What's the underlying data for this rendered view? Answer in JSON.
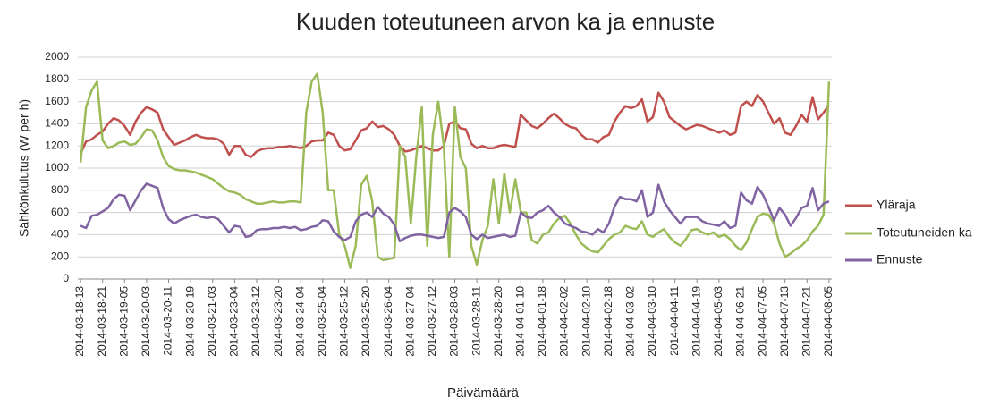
{
  "chart_data": {
    "type": "line",
    "title": "Kuuden toteutuneen arvon ka ja ennuste",
    "x_label": "Päivämäärä",
    "y_label": "Sähkönkulutus  (W per h)",
    "categories": [
      "2014-03-18-13",
      null,
      null,
      null,
      "2014-03-18-21",
      null,
      null,
      null,
      "2014-03-19-05",
      null,
      null,
      null,
      "2014-03-20-03",
      null,
      null,
      null,
      "2014-03-20-11",
      null,
      null,
      null,
      "2014-03-20-19",
      null,
      null,
      null,
      "2014-03-21-03",
      null,
      null,
      null,
      "2014-03-23-04",
      null,
      null,
      null,
      "2014-03-23-12",
      null,
      null,
      null,
      "2014-03-23-20",
      null,
      null,
      null,
      "2014-03-24-04",
      null,
      null,
      null,
      "2014-03-25-04",
      null,
      null,
      null,
      "2014-03-25-12",
      null,
      null,
      null,
      "2014-03-25-20",
      null,
      null,
      null,
      "2014-03-26-04",
      null,
      null,
      null,
      "2014-03-27-04",
      null,
      null,
      null,
      "2014-03-27-12",
      null,
      null,
      null,
      "2014-03-28-03",
      null,
      null,
      null,
      "2014-03-28-11",
      null,
      null,
      null,
      "2014-03-28-20",
      null,
      null,
      null,
      "2014-04-01-10",
      null,
      null,
      null,
      "2014-04-01-18",
      null,
      null,
      null,
      "2014-04-02-02",
      null,
      null,
      null,
      "2014-04-02-10",
      null,
      null,
      null,
      "2014-04-02-18",
      null,
      null,
      null,
      "2014-04-03-02",
      null,
      null,
      null,
      "2014-04-03-10",
      null,
      null,
      null,
      "2014-04-04-11",
      null,
      null,
      null,
      "2014-04-04-19",
      null,
      null,
      null,
      "2014-04-05-03",
      null,
      null,
      null,
      "2014-04-06-21",
      null,
      null,
      null,
      "2014-04-07-05",
      null,
      null,
      null,
      "2014-04-07-13",
      null,
      null,
      null,
      "2014-04-07-21",
      null,
      null,
      null,
      "2014-04-08-05"
    ],
    "series": [
      {
        "name": "Yläraja",
        "color": "#c0504d",
        "values": [
          1130,
          1240,
          1260,
          1300,
          1330,
          1400,
          1450,
          1430,
          1380,
          1300,
          1420,
          1500,
          1550,
          1530,
          1500,
          1350,
          1280,
          1210,
          1230,
          1250,
          1280,
          1300,
          1280,
          1270,
          1270,
          1260,
          1220,
          1120,
          1200,
          1200,
          1120,
          1100,
          1150,
          1170,
          1180,
          1180,
          1190,
          1190,
          1200,
          1190,
          1180,
          1200,
          1240,
          1250,
          1250,
          1320,
          1300,
          1200,
          1160,
          1170,
          1250,
          1340,
          1360,
          1420,
          1370,
          1380,
          1350,
          1300,
          1200,
          1150,
          1160,
          1180,
          1200,
          1180,
          1160,
          1160,
          1200,
          1400,
          1420,
          1360,
          1350,
          1220,
          1180,
          1200,
          1180,
          1180,
          1200,
          1210,
          1200,
          1190,
          1480,
          1430,
          1380,
          1360,
          1400,
          1450,
          1490,
          1450,
          1400,
          1370,
          1360,
          1300,
          1260,
          1260,
          1230,
          1280,
          1300,
          1420,
          1500,
          1560,
          1540,
          1560,
          1620,
          1420,
          1460,
          1680,
          1600,
          1460,
          1420,
          1380,
          1350,
          1370,
          1390,
          1380,
          1360,
          1340,
          1320,
          1340,
          1300,
          1320,
          1560,
          1600,
          1560,
          1660,
          1600,
          1500,
          1400,
          1450,
          1320,
          1300,
          1380,
          1480,
          1420,
          1640,
          1440,
          1500,
          1570
        ]
      },
      {
        "name": "Toteutuneiden ka",
        "color": "#9bbb59",
        "values": [
          1050,
          1550,
          1700,
          1780,
          1250,
          1180,
          1200,
          1230,
          1240,
          1210,
          1220,
          1280,
          1350,
          1340,
          1250,
          1100,
          1020,
          990,
          980,
          980,
          970,
          960,
          940,
          920,
          900,
          860,
          820,
          790,
          780,
          760,
          720,
          700,
          680,
          680,
          690,
          700,
          690,
          690,
          700,
          700,
          690,
          1500,
          1780,
          1850,
          1500,
          800,
          800,
          400,
          300,
          100,
          300,
          850,
          930,
          700,
          200,
          170,
          180,
          190,
          1200,
          1100,
          500,
          1100,
          1550,
          300,
          1300,
          1600,
          1200,
          200,
          1550,
          1100,
          1000,
          300,
          130,
          350,
          480,
          900,
          500,
          950,
          600,
          900,
          600,
          600,
          350,
          320,
          400,
          420,
          500,
          550,
          570,
          500,
          400,
          320,
          280,
          250,
          240,
          300,
          360,
          400,
          420,
          480,
          460,
          450,
          520,
          400,
          380,
          420,
          450,
          380,
          330,
          300,
          360,
          440,
          450,
          420,
          400,
          420,
          380,
          400,
          360,
          300,
          260,
          330,
          450,
          560,
          590,
          580,
          500,
          320,
          200,
          230,
          270,
          300,
          350,
          430,
          480,
          580,
          1780
        ]
      },
      {
        "name": "Ennuste",
        "color": "#8064a2",
        "values": [
          480,
          460,
          570,
          580,
          610,
          640,
          720,
          760,
          750,
          620,
          710,
          800,
          860,
          840,
          820,
          640,
          540,
          500,
          530,
          550,
          570,
          580,
          560,
          550,
          560,
          540,
          480,
          420,
          480,
          470,
          380,
          390,
          440,
          450,
          450,
          460,
          460,
          470,
          460,
          470,
          440,
          450,
          470,
          480,
          530,
          520,
          430,
          380,
          350,
          380,
          520,
          580,
          600,
          560,
          650,
          590,
          560,
          490,
          340,
          370,
          390,
          400,
          400,
          390,
          380,
          370,
          380,
          600,
          640,
          610,
          560,
          400,
          360,
          400,
          370,
          380,
          390,
          400,
          380,
          390,
          600,
          560,
          550,
          600,
          620,
          660,
          600,
          560,
          500,
          480,
          460,
          430,
          420,
          400,
          450,
          420,
          500,
          650,
          740,
          720,
          720,
          700,
          800,
          560,
          600,
          850,
          700,
          620,
          560,
          500,
          560,
          560,
          560,
          520,
          500,
          490,
          480,
          520,
          460,
          480,
          780,
          710,
          680,
          830,
          760,
          650,
          530,
          640,
          580,
          480,
          550,
          640,
          660,
          820,
          620,
          680,
          700
        ]
      }
    ],
    "ylim": [
      0,
      2000
    ],
    "yticks": [
      0,
      200,
      400,
      600,
      800,
      1000,
      1200,
      1400,
      1600,
      1800,
      2000
    ],
    "grid": true,
    "legend": "right"
  }
}
